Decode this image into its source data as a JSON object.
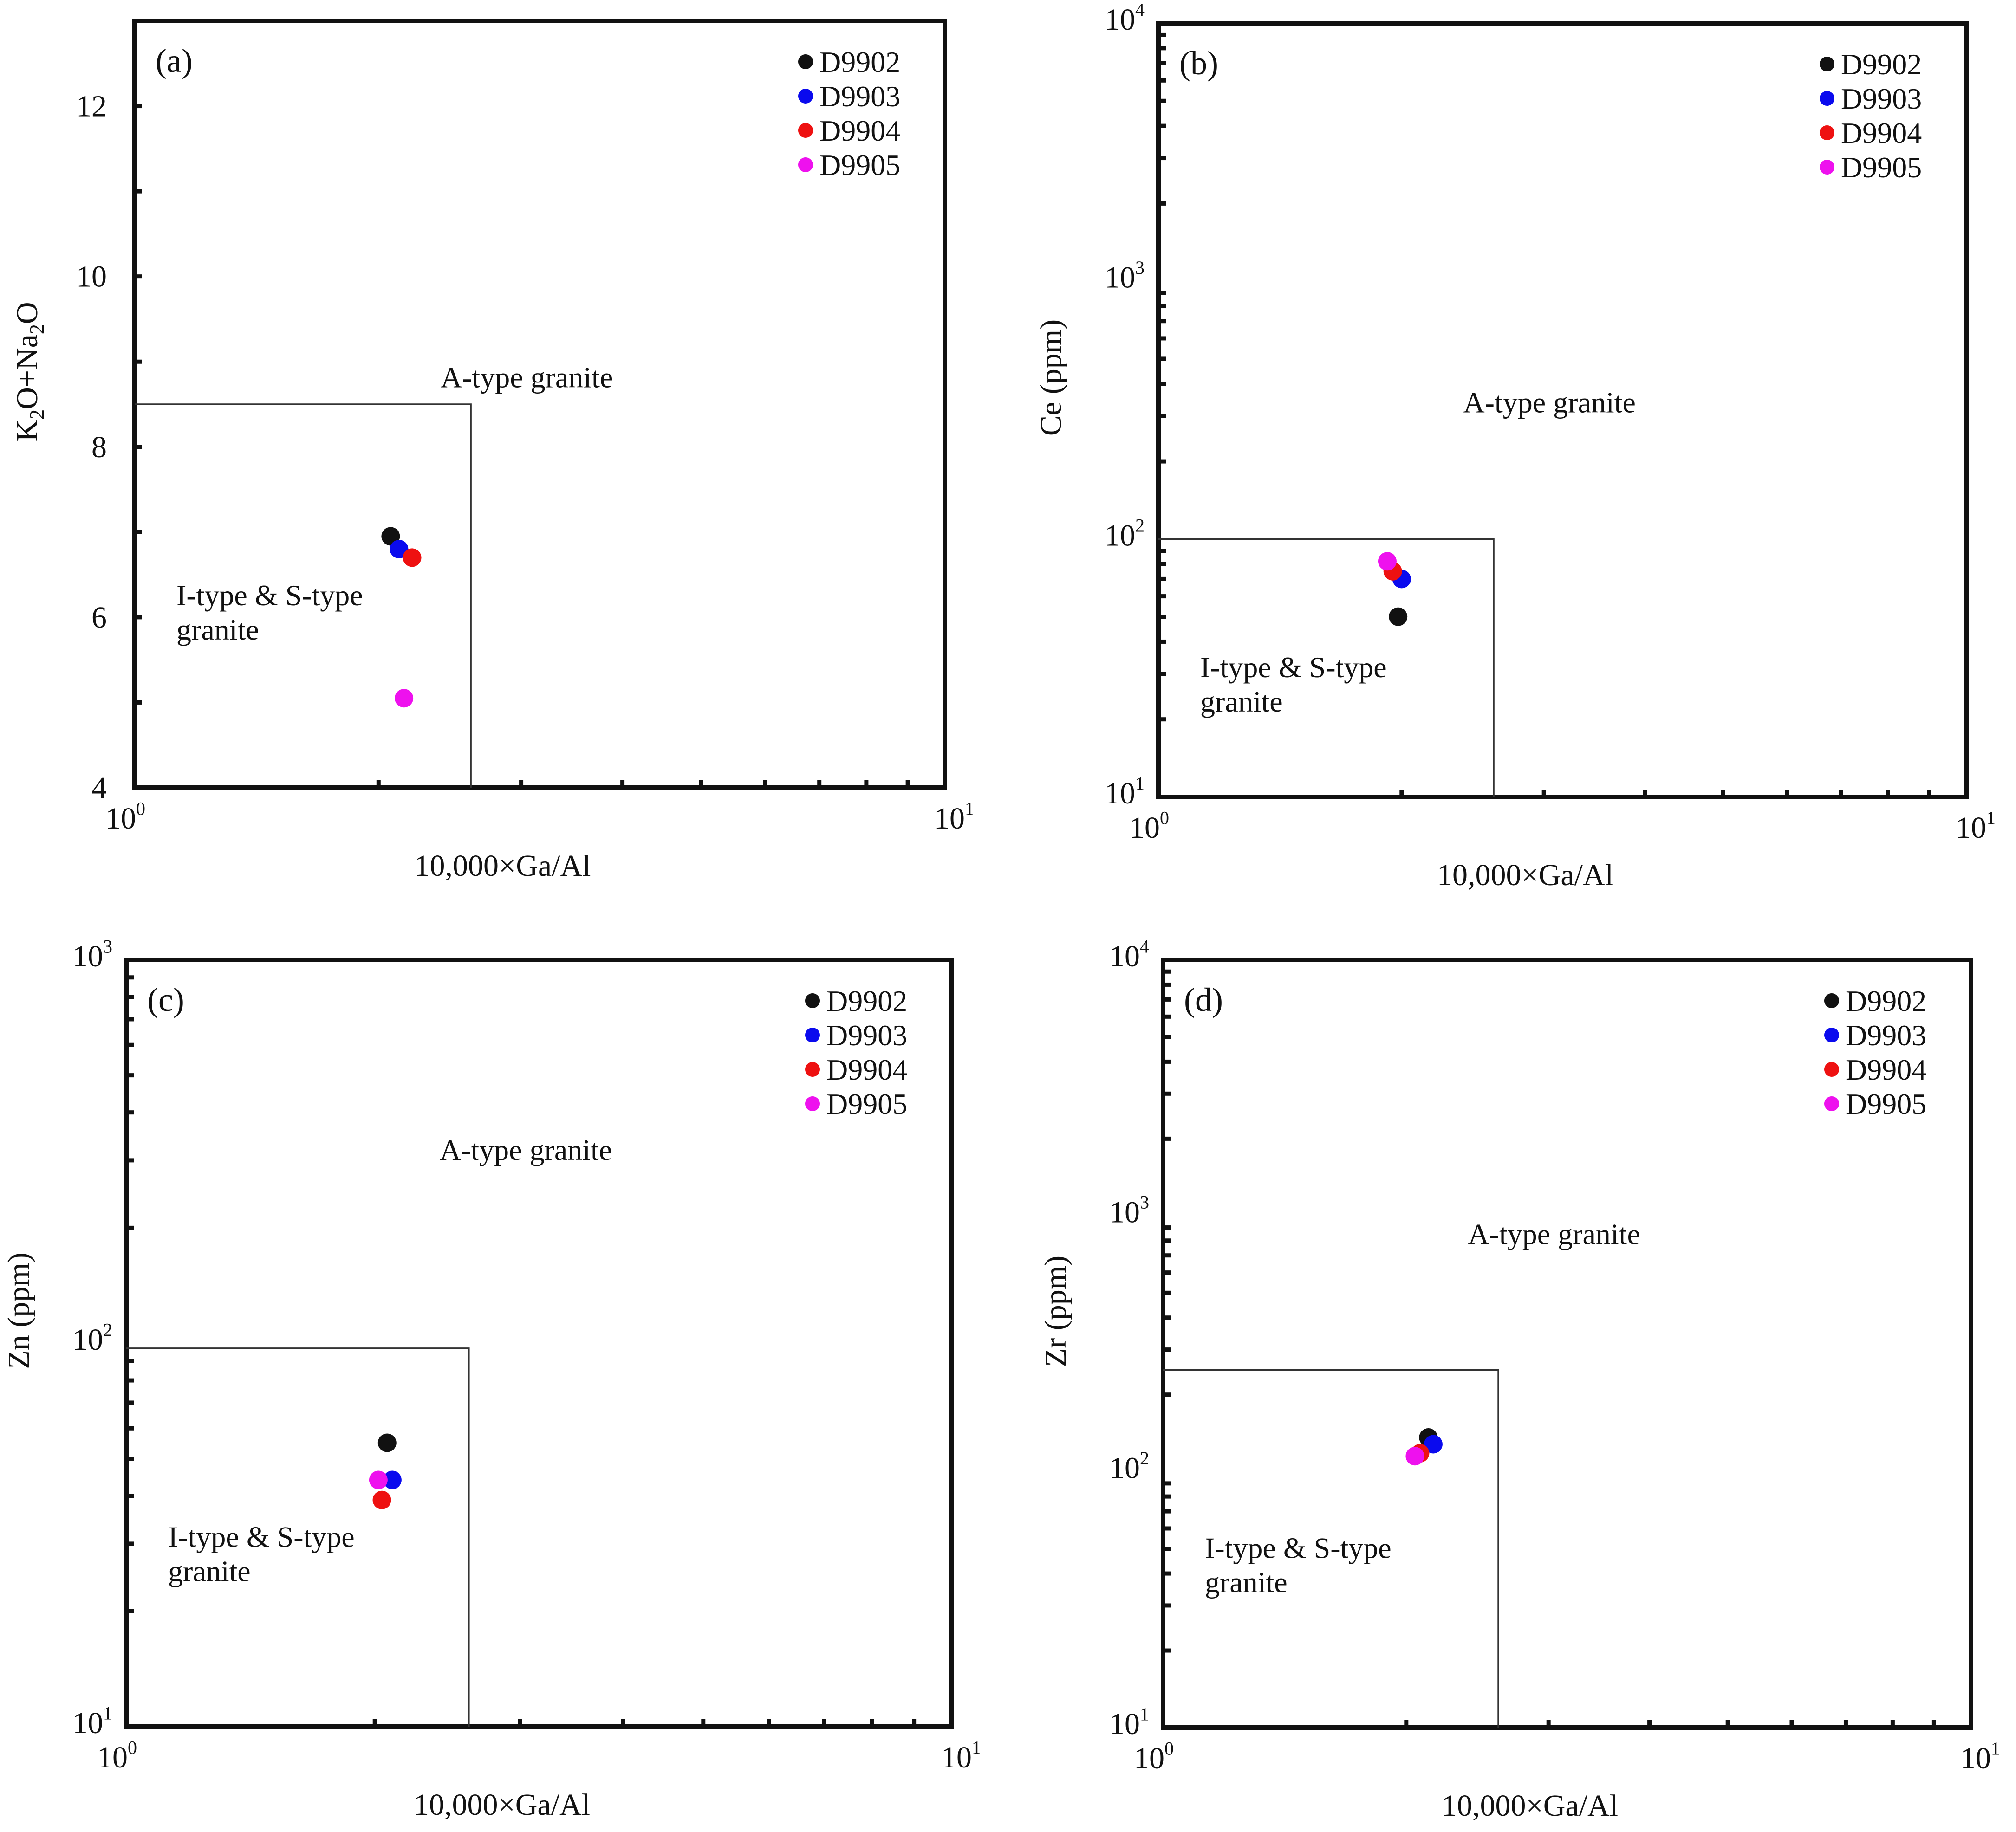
{
  "colors": {
    "D9902": "#111111",
    "D9903": "#0a0aee",
    "D9904": "#ee1111",
    "D9905": "#ee11ee"
  },
  "chart_data": [
    {
      "type": "scatter",
      "panel_label": "(a)",
      "xlabel": "10,000×Ga/Al",
      "ylabel": "K2O+Na2O",
      "xscale": "log",
      "xlim": [
        1,
        10
      ],
      "yscale": "linear",
      "ylim": [
        4,
        13
      ],
      "x_ticks": [
        {
          "base": "10",
          "exp": "0"
        },
        {
          "base": "10",
          "exp": "1"
        }
      ],
      "y_ticks": [
        "4",
        "6",
        "8",
        "10",
        "12"
      ],
      "region_labels": {
        "a_type": "A-type granite",
        "is_type_line1": "I-type & S-type",
        "is_type_line2": "granite"
      },
      "field_boundary": {
        "x_max": 2.6,
        "y_max": 8.5
      },
      "series": [
        {
          "name": "D9902",
          "x": 2.07,
          "y": 6.95
        },
        {
          "name": "D9903",
          "x": 2.12,
          "y": 6.8
        },
        {
          "name": "D9904",
          "x": 2.2,
          "y": 6.7
        },
        {
          "name": "D9905",
          "x": 2.15,
          "y": 5.05
        }
      ],
      "legend": [
        "D9902",
        "D9903",
        "D9904",
        "D9905"
      ]
    },
    {
      "type": "scatter",
      "panel_label": "(b)",
      "xlabel": "10,000×Ga/Al",
      "ylabel": "Ce (ppm)",
      "xscale": "log",
      "xlim": [
        1,
        10
      ],
      "yscale": "log",
      "ylim": [
        10,
        10000
      ],
      "x_ticks": [
        {
          "base": "10",
          "exp": "0"
        },
        {
          "base": "10",
          "exp": "1"
        }
      ],
      "y_ticks": [
        {
          "base": "10",
          "exp": "1"
        },
        {
          "base": "10",
          "exp": "2"
        },
        {
          "base": "10",
          "exp": "3"
        },
        {
          "base": "10",
          "exp": "4"
        }
      ],
      "region_labels": {
        "a_type": "A-type granite",
        "is_type_line1": "I-type & S-type",
        "is_type_line2": "granite"
      },
      "field_boundary": {
        "x_max": 2.6,
        "y_max": 100
      },
      "series": [
        {
          "name": "D9902",
          "x": 1.98,
          "y": 50
        },
        {
          "name": "D9903",
          "x": 2.0,
          "y": 70
        },
        {
          "name": "D9904",
          "x": 1.95,
          "y": 75
        },
        {
          "name": "D9905",
          "x": 1.92,
          "y": 82
        }
      ],
      "legend": [
        "D9902",
        "D9903",
        "D9904",
        "D9905"
      ]
    },
    {
      "type": "scatter",
      "panel_label": "(c)",
      "xlabel": "10,000×Ga/Al",
      "ylabel": "Zn (ppm)",
      "xscale": "log",
      "xlim": [
        1,
        10
      ],
      "yscale": "log",
      "ylim": [
        10,
        1000
      ],
      "x_ticks": [
        {
          "base": "10",
          "exp": "0"
        },
        {
          "base": "10",
          "exp": "1"
        }
      ],
      "y_ticks": [
        {
          "base": "10",
          "exp": "1"
        },
        {
          "base": "10",
          "exp": "2"
        },
        {
          "base": "10",
          "exp": "3"
        }
      ],
      "region_labels": {
        "a_type": "A-type granite",
        "is_type_line1": "I-type & S-type",
        "is_type_line2": "granite"
      },
      "field_boundary": {
        "x_max": 2.6,
        "y_max": 97
      },
      "series": [
        {
          "name": "D9902",
          "x": 2.07,
          "y": 55
        },
        {
          "name": "D9903",
          "x": 2.1,
          "y": 44
        },
        {
          "name": "D9904",
          "x": 2.04,
          "y": 39
        },
        {
          "name": "D9905",
          "x": 2.02,
          "y": 44
        }
      ],
      "legend": [
        "D9902",
        "D9903",
        "D9904",
        "D9905"
      ]
    },
    {
      "type": "scatter",
      "panel_label": "(d)",
      "xlabel": "10,000×Ga/Al",
      "ylabel": "Zr (ppm)",
      "xscale": "log",
      "xlim": [
        1,
        10
      ],
      "yscale": "log",
      "ylim": [
        10,
        10000
      ],
      "x_ticks": [
        {
          "base": "10",
          "exp": "0"
        },
        {
          "base": "10",
          "exp": "1"
        }
      ],
      "y_ticks": [
        {
          "base": "10",
          "exp": "1"
        },
        {
          "base": "10",
          "exp": "2"
        },
        {
          "base": "10",
          "exp": "3"
        },
        {
          "base": "10",
          "exp": "4"
        }
      ],
      "region_labels": {
        "a_type": "A-type granite",
        "is_type_line1": "I-type & S-type",
        "is_type_line2": "granite"
      },
      "field_boundary": {
        "x_max": 2.6,
        "y_max": 250
      },
      "series": [
        {
          "name": "D9902",
          "x": 2.13,
          "y": 136
        },
        {
          "name": "D9903",
          "x": 2.16,
          "y": 128
        },
        {
          "name": "D9904",
          "x": 2.08,
          "y": 118
        },
        {
          "name": "D9905",
          "x": 2.05,
          "y": 115
        }
      ],
      "legend": [
        "D9902",
        "D9903",
        "D9904",
        "D9905"
      ]
    }
  ]
}
